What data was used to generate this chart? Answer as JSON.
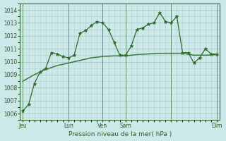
{
  "background_color": "#cce8e8",
  "grid_color": "#aacccc",
  "line_color_main": "#2d6a2d",
  "line_color_smooth": "#3a7a3a",
  "xlabel": "Pression niveau de la mer( hPa )",
  "ylim": [
    1005.5,
    1014.5
  ],
  "yticks": [
    1006,
    1007,
    1008,
    1009,
    1010,
    1011,
    1012,
    1013,
    1014
  ],
  "series1_x": [
    0,
    1,
    2,
    3,
    4,
    5,
    6,
    7,
    8,
    9,
    10,
    11,
    12,
    13,
    14,
    15,
    16,
    17,
    18,
    19,
    20,
    21,
    22,
    23,
    24,
    25,
    26,
    27,
    28,
    29,
    30,
    31,
    32,
    33,
    34
  ],
  "series1_y": [
    1006.2,
    1006.7,
    1008.3,
    1009.2,
    1009.5,
    1010.7,
    1010.6,
    1010.4,
    1010.3,
    1010.5,
    1012.2,
    1012.4,
    1012.8,
    1013.1,
    1013.0,
    1012.5,
    1011.5,
    1010.5,
    1010.5,
    1011.2,
    1012.5,
    1012.6,
    1012.9,
    1013.0,
    1013.8,
    1013.1,
    1013.0,
    1013.5,
    1010.7,
    1010.7,
    1009.9,
    1010.3,
    1011.0,
    1010.6,
    1010.6
  ],
  "series2_x": [
    0,
    2,
    4,
    6,
    8,
    10,
    12,
    14,
    16,
    18,
    20,
    22,
    24,
    26,
    28,
    30,
    32,
    34
  ],
  "series2_y": [
    1008.5,
    1009.0,
    1009.4,
    1009.7,
    1009.9,
    1010.1,
    1010.3,
    1010.4,
    1010.45,
    1010.45,
    1010.55,
    1010.6,
    1010.65,
    1010.65,
    1010.65,
    1010.5,
    1010.5,
    1010.55
  ],
  "day_tick_x": [
    0,
    8,
    14,
    18,
    26,
    34
  ],
  "day_labels": [
    "Jeu",
    "Lun",
    "Ven",
    "Sam",
    "Dim"
  ],
  "vline_x": [
    0,
    8,
    14,
    18,
    26,
    34
  ],
  "xlim": [
    -0.5,
    34.5
  ]
}
